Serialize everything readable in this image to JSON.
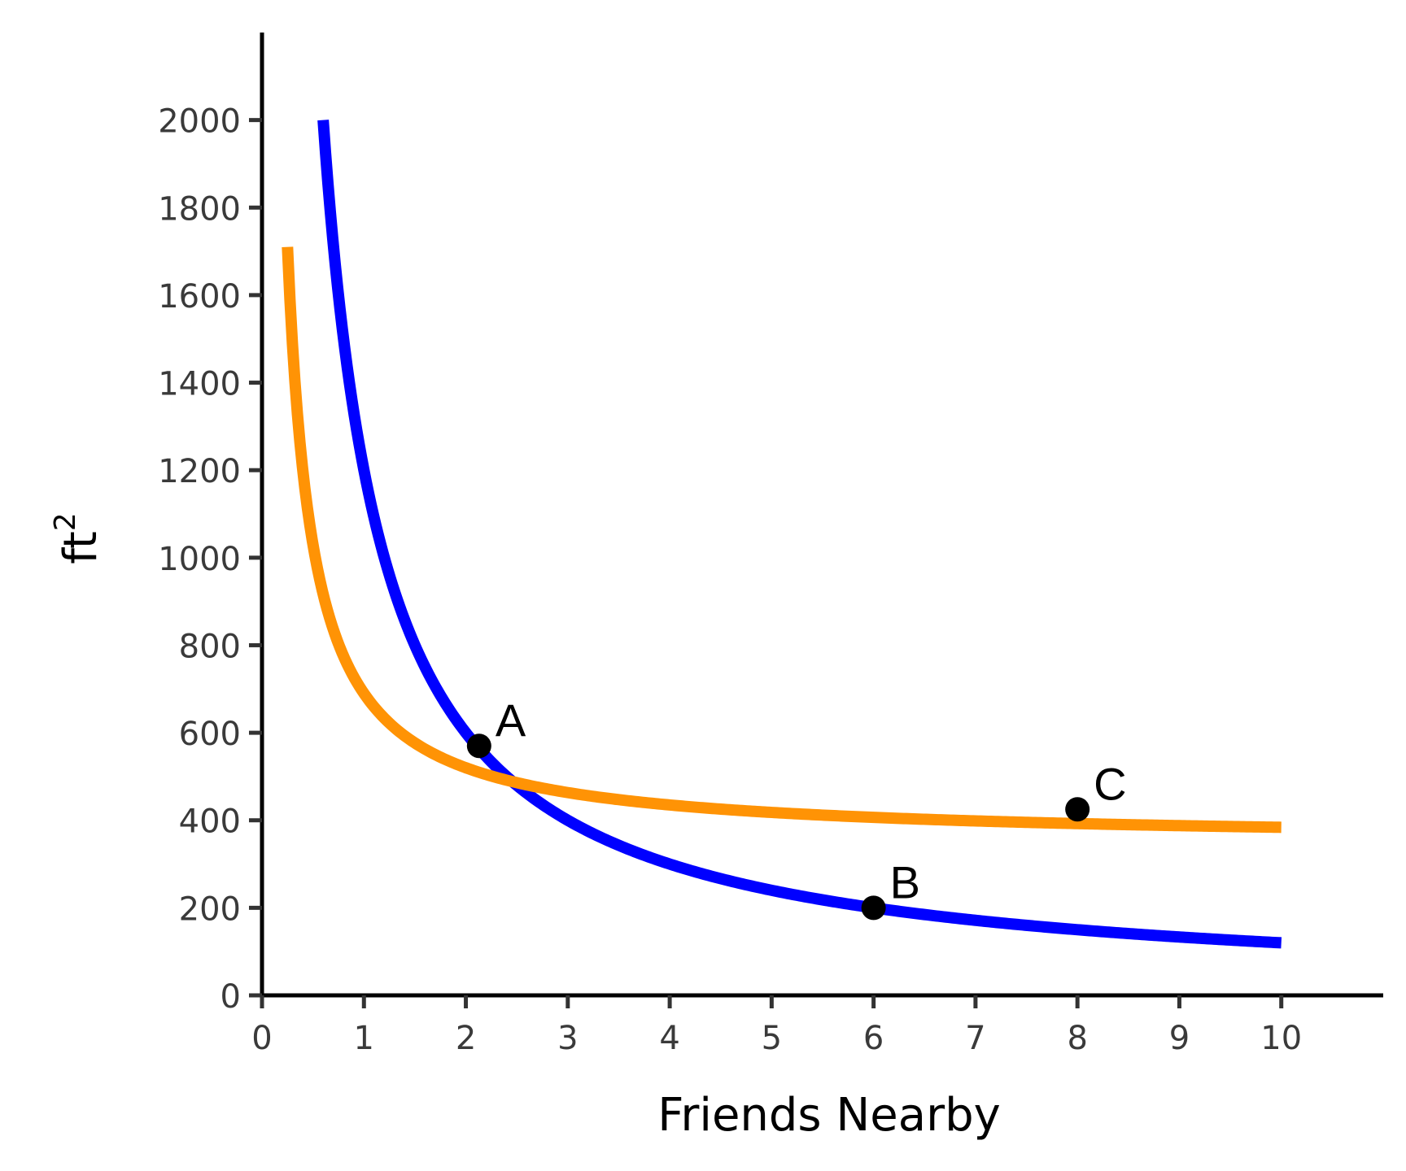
{
  "chart_data": {
    "type": "line",
    "title": "",
    "xlabel": "Friends Nearby",
    "ylabel_base": "ft",
    "ylabel_sup": "2",
    "xlim": [
      0,
      11
    ],
    "ylim": [
      0,
      2200
    ],
    "x_ticks": [
      0,
      1,
      2,
      3,
      4,
      5,
      6,
      7,
      8,
      9,
      10
    ],
    "x_tick_labels": [
      "0",
      "1",
      "2",
      "3",
      "4",
      "5",
      "6",
      "7",
      "8",
      "9",
      "10"
    ],
    "y_ticks": [
      0,
      200,
      400,
      600,
      800,
      1000,
      1200,
      1400,
      1600,
      1800,
      2000
    ],
    "y_tick_labels": [
      "0",
      "200",
      "400",
      "600",
      "800",
      "1000",
      "1200",
      "1400",
      "1600",
      "1800",
      "2000"
    ],
    "grid": false,
    "series": [
      {
        "color": "#0000ff",
        "x_range": [
          0.6,
          10
        ],
        "formula": "y = 1200 / x"
      },
      {
        "color": "#ff9305",
        "x_range": [
          0.25,
          10
        ],
        "formula": "y = 350 + 340 / x"
      }
    ],
    "points": [
      {
        "label": "A",
        "x": 2.13,
        "y": 570
      },
      {
        "label": "B",
        "x": 6,
        "y": 200
      },
      {
        "label": "C",
        "x": 8,
        "y": 425
      }
    ]
  }
}
